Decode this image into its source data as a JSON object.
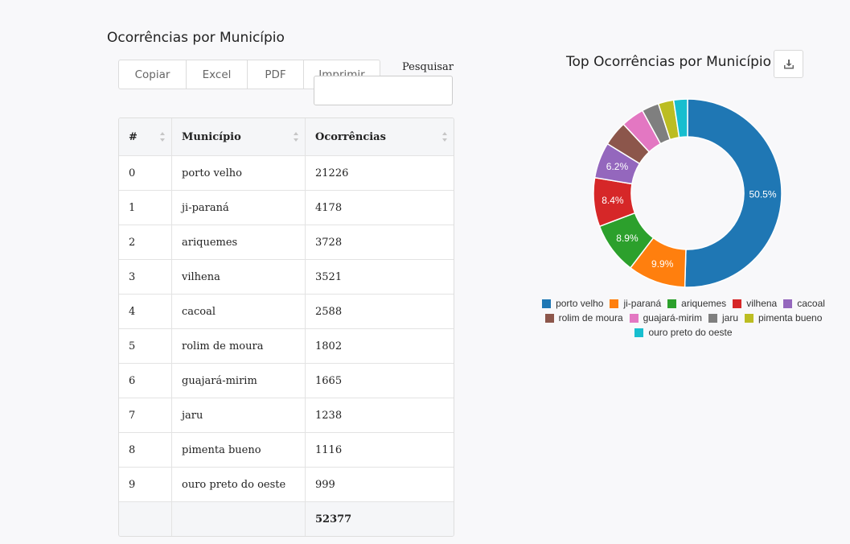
{
  "table_section": {
    "title": "Ocorrências por Município"
  },
  "toolbar": {
    "copy_label": "Copiar",
    "excel_label": "Excel",
    "pdf_label": "PDF",
    "print_label": "Imprimir"
  },
  "search": {
    "label": "Pesquisar",
    "value": ""
  },
  "table": {
    "headers": [
      "#",
      "Município",
      "Ocorrências"
    ],
    "rows": [
      [
        "0",
        "porto velho",
        "21226"
      ],
      [
        "1",
        "ji-paraná",
        "4178"
      ],
      [
        "2",
        "ariquemes",
        "3728"
      ],
      [
        "3",
        "vilhena",
        "3521"
      ],
      [
        "4",
        "cacoal",
        "2588"
      ],
      [
        "5",
        "rolim de moura",
        "1802"
      ],
      [
        "6",
        "guajará-mirim",
        "1665"
      ],
      [
        "7",
        "jaru",
        "1238"
      ],
      [
        "8",
        "pimenta bueno",
        "1116"
      ],
      [
        "9",
        "ouro preto do oeste",
        "999"
      ]
    ],
    "total": "52377"
  },
  "chart_data": {
    "type": "pie",
    "title": "Top Ocorrências por Município",
    "donut": true,
    "categories": [
      "porto velho",
      "ji-paraná",
      "ariquemes",
      "vilhena",
      "cacoal",
      "rolim de moura",
      "guajará-mirim",
      "jaru",
      "pimenta bueno",
      "ouro preto do oeste"
    ],
    "values": [
      21226,
      4178,
      3728,
      3521,
      2588,
      1802,
      1665,
      1238,
      1116,
      999
    ],
    "data_labels": [
      "50.5%",
      "9.9%",
      "8.9%",
      "8.4%",
      "6.2%",
      "",
      "",
      "",
      "",
      ""
    ],
    "colors": [
      "#1f77b4",
      "#ff7f0e",
      "#2ca02c",
      "#d62728",
      "#9467bd",
      "#8c564b",
      "#e377c2",
      "#7f7f7f",
      "#bcbd22",
      "#17becf"
    ],
    "legend_position": "bottom"
  },
  "icons": {
    "download": "download-icon",
    "sort": "sort-icon"
  }
}
